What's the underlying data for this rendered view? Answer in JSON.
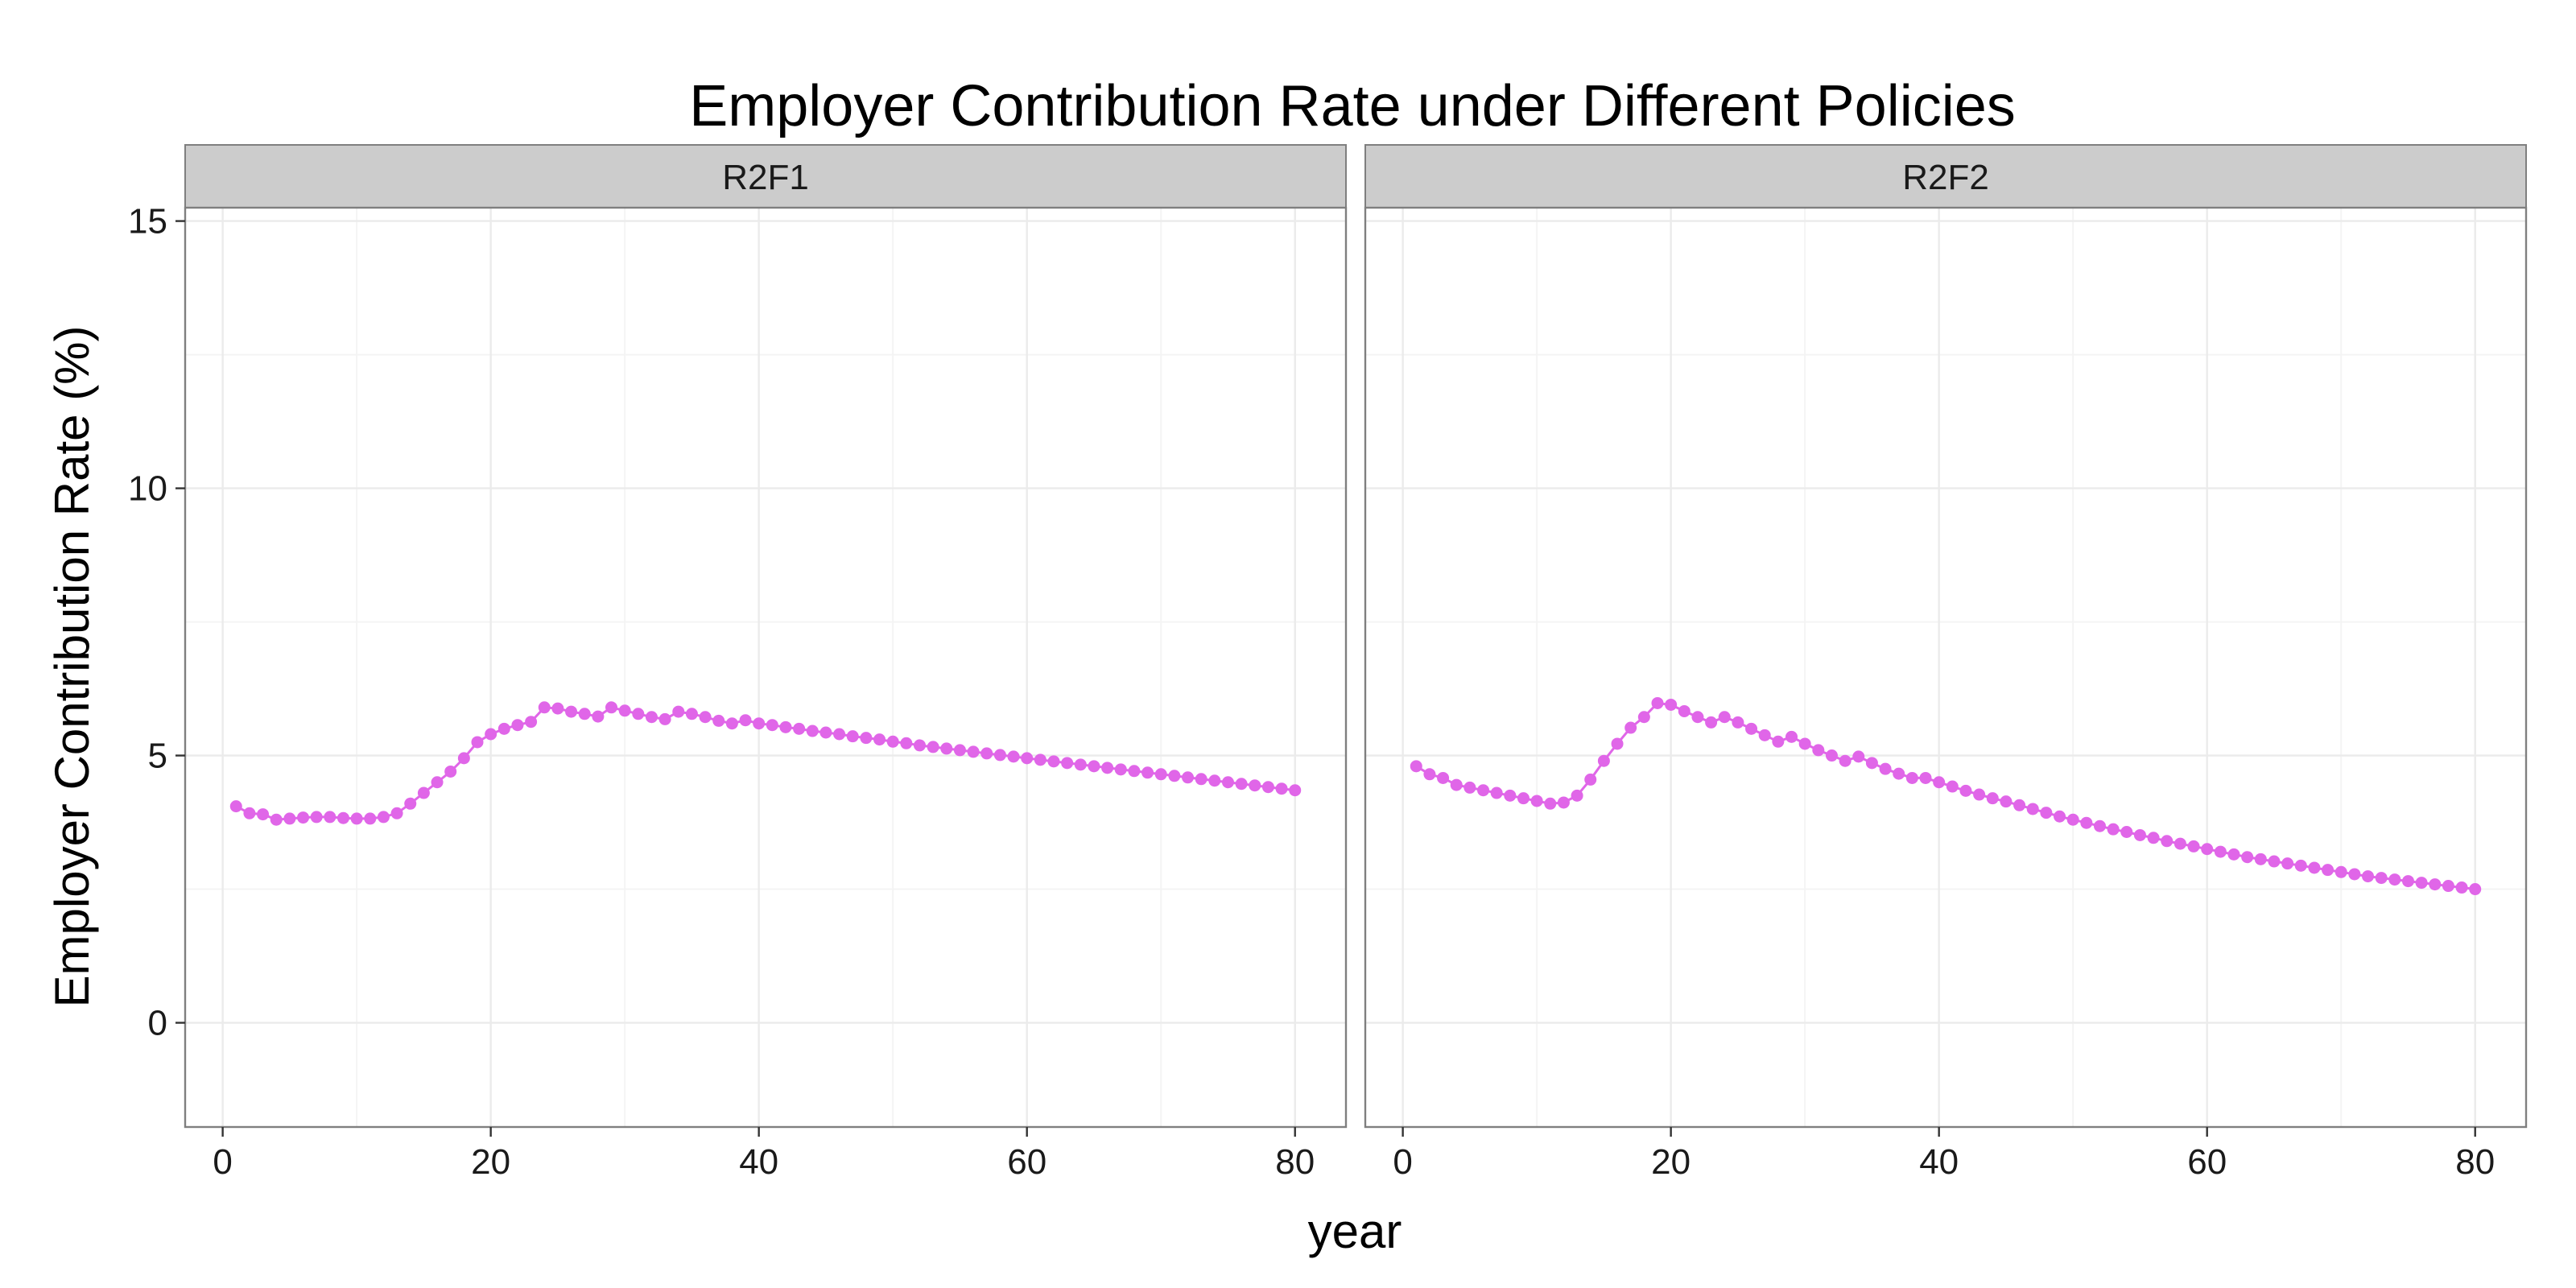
{
  "chart_data": {
    "type": "scatter",
    "title": "Employer Contribution Rate under Different Policies",
    "xlabel": "year",
    "ylabel": "Employer Contribution Rate (%)",
    "xlim": [
      -2.8,
      83.8
    ],
    "ylim": [
      -1.95,
      15.25
    ],
    "x_ticks": [
      0,
      20,
      40,
      60,
      80
    ],
    "y_ticks": [
      0,
      5,
      10,
      15
    ],
    "grid": true,
    "legend": "none",
    "point_color": "#E066E8",
    "line_color": "#E066E8",
    "panel_border_color": "#7f7f7f",
    "strip_fill": "#cccccc",
    "grid_color": "#ebebeb",
    "panels": [
      {
        "label": "R2F1",
        "x": [
          1,
          2,
          3,
          4,
          5,
          6,
          7,
          8,
          9,
          10,
          11,
          12,
          13,
          14,
          15,
          16,
          17,
          18,
          19,
          20,
          21,
          22,
          23,
          24,
          25,
          26,
          27,
          28,
          29,
          30,
          31,
          32,
          33,
          34,
          35,
          36,
          37,
          38,
          39,
          40,
          41,
          42,
          43,
          44,
          45,
          46,
          47,
          48,
          49,
          50,
          51,
          52,
          53,
          54,
          55,
          56,
          57,
          58,
          59,
          60,
          61,
          62,
          63,
          64,
          65,
          66,
          67,
          68,
          69,
          70,
          71,
          72,
          73,
          74,
          75,
          76,
          77,
          78,
          79,
          80
        ],
        "y": [
          4.05,
          3.92,
          3.9,
          3.8,
          3.82,
          3.84,
          3.85,
          3.85,
          3.83,
          3.82,
          3.82,
          3.85,
          3.92,
          4.1,
          4.3,
          4.5,
          4.7,
          4.95,
          5.25,
          5.4,
          5.5,
          5.57,
          5.63,
          5.9,
          5.88,
          5.82,
          5.78,
          5.73,
          5.9,
          5.84,
          5.78,
          5.72,
          5.68,
          5.82,
          5.78,
          5.72,
          5.65,
          5.6,
          5.66,
          5.6,
          5.57,
          5.53,
          5.5,
          5.46,
          5.43,
          5.4,
          5.36,
          5.33,
          5.3,
          5.26,
          5.23,
          5.19,
          5.16,
          5.13,
          5.1,
          5.07,
          5.04,
          5.01,
          4.98,
          4.95,
          4.92,
          4.89,
          4.86,
          4.83,
          4.8,
          4.77,
          4.74,
          4.71,
          4.68,
          4.65,
          4.62,
          4.59,
          4.56,
          4.53,
          4.5,
          4.47,
          4.44,
          4.41,
          4.38,
          4.35
        ]
      },
      {
        "label": "R2F2",
        "x": [
          1,
          2,
          3,
          4,
          5,
          6,
          7,
          8,
          9,
          10,
          11,
          12,
          13,
          14,
          15,
          16,
          17,
          18,
          19,
          20,
          21,
          22,
          23,
          24,
          25,
          26,
          27,
          28,
          29,
          30,
          31,
          32,
          33,
          34,
          35,
          36,
          37,
          38,
          39,
          40,
          41,
          42,
          43,
          44,
          45,
          46,
          47,
          48,
          49,
          50,
          51,
          52,
          53,
          54,
          55,
          56,
          57,
          58,
          59,
          60,
          61,
          62,
          63,
          64,
          65,
          66,
          67,
          68,
          69,
          70,
          71,
          72,
          73,
          74,
          75,
          76,
          77,
          78,
          79,
          80
        ],
        "y": [
          4.8,
          4.65,
          4.58,
          4.45,
          4.4,
          4.35,
          4.3,
          4.25,
          4.2,
          4.15,
          4.1,
          4.12,
          4.25,
          4.55,
          4.9,
          5.22,
          5.52,
          5.72,
          5.98,
          5.95,
          5.83,
          5.72,
          5.62,
          5.72,
          5.62,
          5.5,
          5.38,
          5.26,
          5.35,
          5.22,
          5.1,
          5.0,
          4.9,
          4.98,
          4.86,
          4.75,
          4.66,
          4.58,
          4.58,
          4.5,
          4.42,
          4.34,
          4.27,
          4.2,
          4.14,
          4.07,
          4.0,
          3.93,
          3.86,
          3.8,
          3.74,
          3.68,
          3.62,
          3.57,
          3.51,
          3.46,
          3.4,
          3.35,
          3.3,
          3.25,
          3.2,
          3.15,
          3.1,
          3.06,
          3.02,
          2.98,
          2.94,
          2.9,
          2.86,
          2.82,
          2.78,
          2.74,
          2.71,
          2.68,
          2.65,
          2.62,
          2.59,
          2.56,
          2.53,
          2.5
        ]
      }
    ]
  }
}
